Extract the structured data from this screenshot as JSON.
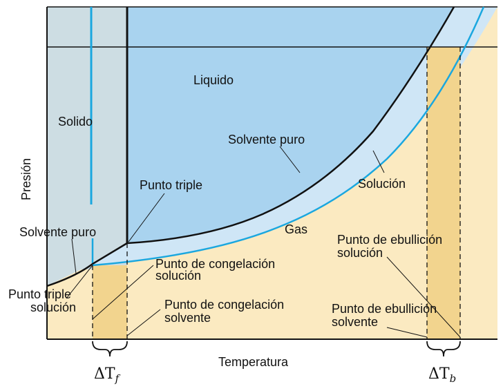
{
  "diagram": {
    "y_axis_label": "Presión",
    "x_axis_label": "Temperatura",
    "regions": {
      "solid": "Solido",
      "liquid": "Liquido",
      "gas": "Gas"
    },
    "curves": {
      "pure_solvent_vapor": "Solvente puro",
      "solution_vapor": "Solución",
      "pure_solvent_sublimation": "Solvente puro"
    },
    "annotations": {
      "triple_point": "Punto triple",
      "triple_point_solution_1": "Punto triple",
      "triple_point_solution_2": "solución",
      "freezing_solution_1": "Punto de congelación",
      "freezing_solution_2": "solución",
      "freezing_solvent_1": "Punto de congelación",
      "freezing_solvent_2": "solvente",
      "boiling_solution_1": "Punto de ebullición",
      "boiling_solution_2": "solución",
      "boiling_solvent_1": "Punto de ebullición",
      "boiling_solvent_2": "solvente"
    },
    "deltas": {
      "freezing": "ΔT",
      "freezing_sub": "f",
      "boiling": "ΔT",
      "boiling_sub": "b"
    },
    "colors": {
      "solid_fill": "#cddde3",
      "liquid_fill": "#a9d3ef",
      "gas_fill": "#fbeac1",
      "shift_band": "#cfe6f6",
      "delta_band": "#f2d48e",
      "solution_curve": "#1aa7df",
      "solvent_curve": "#111111"
    }
  }
}
